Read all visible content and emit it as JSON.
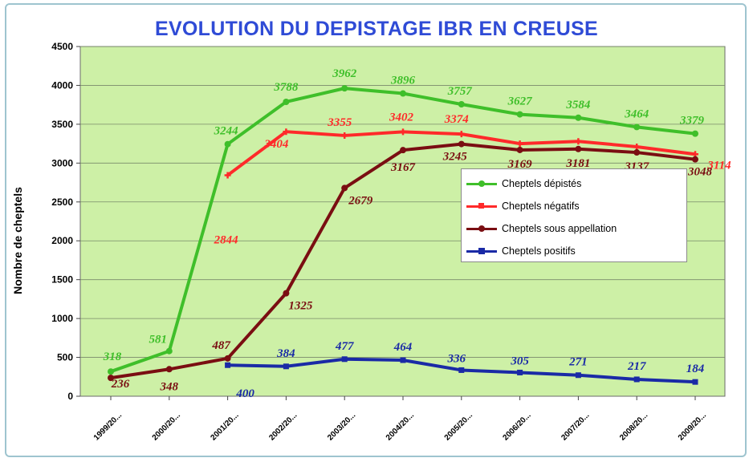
{
  "title": "EVOLUTION DU DEPISTAGE IBR EN CREUSE",
  "chart_data": {
    "type": "line",
    "title": "EVOLUTION DU DEPISTAGE IBR EN CREUSE",
    "xlabel": "",
    "ylabel": "Nombre de cheptels",
    "ylim": [
      0,
      4500
    ],
    "yticks": [
      "0",
      "500",
      "1000",
      "1500",
      "2000",
      "2500",
      "3000",
      "3500",
      "4000",
      "4500"
    ],
    "grid": true,
    "legend_position": "right",
    "categories": [
      "1999/20...",
      "2000/20...",
      "2001/20...",
      "2002/20...",
      "2003/20...",
      "2004/20...",
      "2005/20...",
      "2006/20...",
      "2007/20...",
      "2008/20...",
      "2009/20..."
    ],
    "series": [
      {
        "name": "Cheptels dépistés",
        "color": "#3fbf2a",
        "marker": "circle",
        "values": [
          318,
          581,
          3244,
          3788,
          3962,
          3896,
          3757,
          3627,
          3584,
          3464,
          3379
        ],
        "labels": [
          "318",
          "581",
          "3244",
          "3788",
          "3962",
          "3896",
          "3757",
          "3627",
          "3584",
          "3464",
          "3379"
        ]
      },
      {
        "name": "Cheptels négatifs",
        "color": "#ff2a2a",
        "marker": "cross",
        "values": [
          null,
          null,
          2844,
          3404,
          3355,
          3402,
          3374,
          3250,
          3280,
          3210,
          3114
        ],
        "labels": [
          "",
          "",
          "2844",
          "3404",
          "3355",
          "3402",
          "3374",
          "",
          "",
          "",
          "3114"
        ]
      },
      {
        "name": "Cheptels sous appellation",
        "color": "#7a0e12",
        "marker": "circle",
        "values": [
          236,
          348,
          487,
          1325,
          2679,
          3167,
          3245,
          3169,
          3181,
          3137,
          3048
        ],
        "labels": [
          "236",
          "348",
          "487",
          "1325",
          "2679",
          "3167",
          "3245",
          "3169",
          "3181",
          "3137",
          "3048"
        ]
      },
      {
        "name": "Cheptels positifs",
        "color": "#1a2aa6",
        "marker": "square",
        "values": [
          null,
          null,
          400,
          384,
          477,
          464,
          336,
          305,
          271,
          217,
          184
        ],
        "labels": [
          "",
          "",
          "400",
          "384",
          "477",
          "464",
          "336",
          "305",
          "271",
          "217",
          "184"
        ]
      }
    ]
  }
}
